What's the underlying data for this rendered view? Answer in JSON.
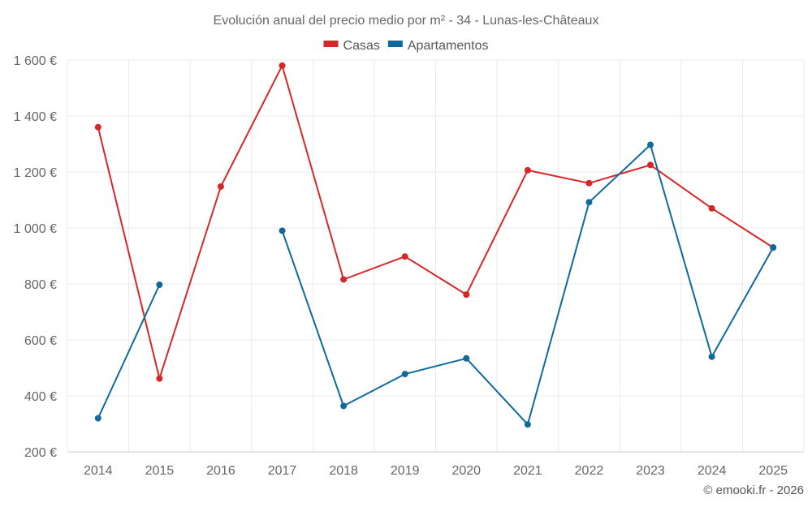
{
  "chart_data": {
    "type": "line",
    "title": "Evolución anual del precio medio por m² - 34 - Lunas-les-Châteaux",
    "categories": [
      "2014",
      "2015",
      "2016",
      "2017",
      "2018",
      "2019",
      "2020",
      "2021",
      "2022",
      "2023",
      "2024",
      "2025"
    ],
    "series": [
      {
        "name": "Casas",
        "color": "#d62728",
        "values": [
          1360,
          462,
          1148,
          1580,
          816,
          898,
          762,
          1206,
          1160,
          1225,
          1070,
          930
        ]
      },
      {
        "name": "Apartamentos",
        "color": "#0f6a9b",
        "values": [
          320,
          797,
          null,
          990,
          364,
          478,
          534,
          298,
          1092,
          1297,
          540,
          930
        ]
      }
    ],
    "ylim": [
      200,
      1600
    ],
    "yticks": [
      200,
      400,
      600,
      800,
      1000,
      1200,
      1400,
      1600
    ],
    "ytick_labels": [
      "200 €",
      "400 €",
      "600 €",
      "800 €",
      "1 000 €",
      "1 200 €",
      "1 400 €",
      "1 600 €"
    ],
    "grid": true,
    "legend": "top-center",
    "xlabel": "",
    "ylabel": ""
  },
  "footer": "© emooki.fr - 2026"
}
